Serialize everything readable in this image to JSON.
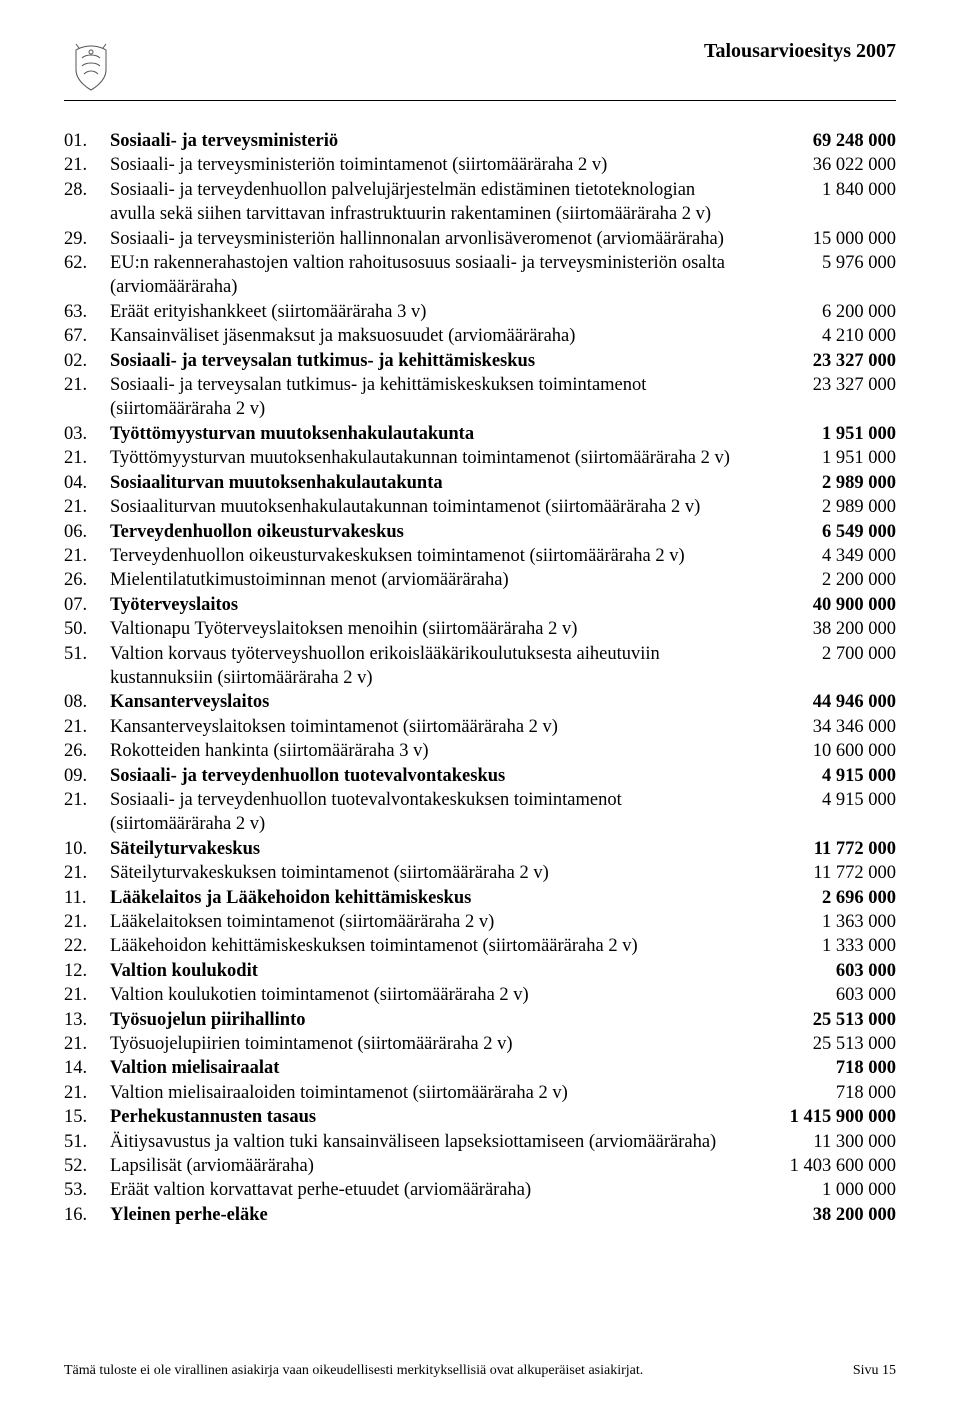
{
  "header": {
    "title": "Talousarvioesitys 2007"
  },
  "rows": [
    {
      "num": "01.",
      "desc": "Sosiaali- ja terveysministeriö",
      "val": "69 248 000",
      "bold": true
    },
    {
      "num": "21.",
      "desc": "Sosiaali- ja terveysministeriön toimintamenot (siirtomääräraha 2 v)",
      "val": "36 022 000"
    },
    {
      "num": "28.",
      "desc": "Sosiaali- ja terveydenhuollon palvelujärjestelmän edistäminen tietoteknologian avulla sekä siihen tarvittavan infrastruktuurin rakentaminen (siirtomääräraha 2 v)",
      "val": "1 840 000"
    },
    {
      "num": "29.",
      "desc": "Sosiaali- ja terveysministeriön hallinnonalan arvonlisäveromenot (arviomääräraha)",
      "val": "15 000 000"
    },
    {
      "num": "62.",
      "desc": "EU:n rakennerahastojen valtion rahoitusosuus sosiaali- ja terveysministeriön osalta (arviomääräraha)",
      "val": "5 976 000"
    },
    {
      "num": "63.",
      "desc": "Eräät erityishankkeet (siirtomääräraha 3 v)",
      "val": "6 200 000"
    },
    {
      "num": "67.",
      "desc": "Kansainväliset jäsenmaksut ja maksuosuudet (arviomääräraha)",
      "val": "4 210 000"
    },
    {
      "num": "02.",
      "desc": "Sosiaali- ja terveysalan tutkimus- ja kehittämiskeskus",
      "val": "23 327 000",
      "bold": true
    },
    {
      "num": "21.",
      "desc": "Sosiaali- ja terveysalan tutkimus- ja kehittämiskeskuksen toimintamenot (siirtomääräraha 2 v)",
      "val": "23 327 000"
    },
    {
      "num": "03.",
      "desc": "Työttömyysturvan muutoksenhakulautakunta",
      "val": "1 951 000",
      "bold": true
    },
    {
      "num": "21.",
      "desc": "Työttömyysturvan muutoksenhakulautakunnan toimintamenot (siirtomääräraha 2 v)",
      "val": "1 951 000"
    },
    {
      "num": "04.",
      "desc": "Sosiaaliturvan muutoksenhakulautakunta",
      "val": "2 989 000",
      "bold": true
    },
    {
      "num": "21.",
      "desc": "Sosiaaliturvan muutoksenhakulautakunnan toimintamenot (siirtomääräraha 2 v)",
      "val": "2 989 000"
    },
    {
      "num": "06.",
      "desc": "Terveydenhuollon oikeusturvakeskus",
      "val": "6 549 000",
      "bold": true
    },
    {
      "num": "21.",
      "desc": "Terveydenhuollon oikeusturvakeskuksen toimintamenot (siirtomääräraha 2 v)",
      "val": "4 349 000"
    },
    {
      "num": "26.",
      "desc": "Mielentilatutkimustoiminnan menot (arviomääräraha)",
      "val": "2 200 000"
    },
    {
      "num": "07.",
      "desc": "Työterveyslaitos",
      "val": "40 900 000",
      "bold": true
    },
    {
      "num": "50.",
      "desc": "Valtionapu Työterveyslaitoksen menoihin (siirtomääräraha 2 v)",
      "val": "38 200 000"
    },
    {
      "num": "51.",
      "desc": "Valtion korvaus työterveyshuollon erikoislääkärikoulutuksesta aiheutuviin kustannuksiin (siirtomääräraha 2 v)",
      "val": "2 700 000"
    },
    {
      "num": "08.",
      "desc": "Kansanterveyslaitos",
      "val": "44 946 000",
      "bold": true
    },
    {
      "num": "21.",
      "desc": "Kansanterveyslaitoksen toimintamenot (siirtomääräraha 2 v)",
      "val": "34 346 000"
    },
    {
      "num": "26.",
      "desc": "Rokotteiden hankinta (siirtomääräraha 3 v)",
      "val": "10 600 000"
    },
    {
      "num": "09.",
      "desc": "Sosiaali- ja terveydenhuollon tuotevalvontakeskus",
      "val": "4 915 000",
      "bold": true
    },
    {
      "num": "21.",
      "desc": "Sosiaali- ja terveydenhuollon tuotevalvontakeskuksen toimintamenot (siirtomääräraha 2 v)",
      "val": "4 915 000"
    },
    {
      "num": "10.",
      "desc": "Säteilyturvakeskus",
      "val": "11 772 000",
      "bold": true
    },
    {
      "num": "21.",
      "desc": "Säteilyturvakeskuksen toimintamenot (siirtomääräraha 2 v)",
      "val": "11 772 000"
    },
    {
      "num": "11.",
      "desc": "Lääkelaitos ja Lääkehoidon kehittämiskeskus",
      "val": "2 696 000",
      "bold": true
    },
    {
      "num": "21.",
      "desc": "Lääkelaitoksen toimintamenot (siirtomääräraha 2 v)",
      "val": "1 363 000"
    },
    {
      "num": "22.",
      "desc": "Lääkehoidon kehittämiskeskuksen toimintamenot (siirtomääräraha 2 v)",
      "val": "1 333 000"
    },
    {
      "num": "12.",
      "desc": "Valtion koulukodit",
      "val": "603 000",
      "bold": true
    },
    {
      "num": "21.",
      "desc": "Valtion koulukotien toimintamenot (siirtomääräraha 2 v)",
      "val": "603 000"
    },
    {
      "num": "13.",
      "desc": "Työsuojelun piirihallinto",
      "val": "25 513 000",
      "bold": true
    },
    {
      "num": "21.",
      "desc": "Työsuojelupiirien toimintamenot (siirtomääräraha 2 v)",
      "val": "25 513 000"
    },
    {
      "num": "14.",
      "desc": "Valtion mielisairaalat",
      "val": "718 000",
      "bold": true
    },
    {
      "num": "21.",
      "desc": "Valtion mielisairaaloiden toimintamenot (siirtomääräraha 2 v)",
      "val": "718 000"
    },
    {
      "num": "15.",
      "desc": "Perhekustannusten tasaus",
      "val": "1 415 900 000",
      "bold": true
    },
    {
      "num": "51.",
      "desc": "Äitiysavustus ja valtion tuki kansainväliseen lapseksiottamiseen (arviomääräraha)",
      "val": "11 300 000"
    },
    {
      "num": "52.",
      "desc": "Lapsilisät (arviomääräraha)",
      "val": "1 403 600 000"
    },
    {
      "num": "53.",
      "desc": "Eräät valtion korvattavat perhe-etuudet (arviomääräraha)",
      "val": "1 000 000"
    },
    {
      "num": "16.",
      "desc": "Yleinen perhe-eläke",
      "val": "38 200 000",
      "bold": true
    }
  ],
  "footer": {
    "note": "Tämä tuloste ei ole virallinen asiakirja vaan oikeudellisesti merkityksellisiä ovat alkuperäiset asiakirjat.",
    "page": "Sivu 15"
  }
}
